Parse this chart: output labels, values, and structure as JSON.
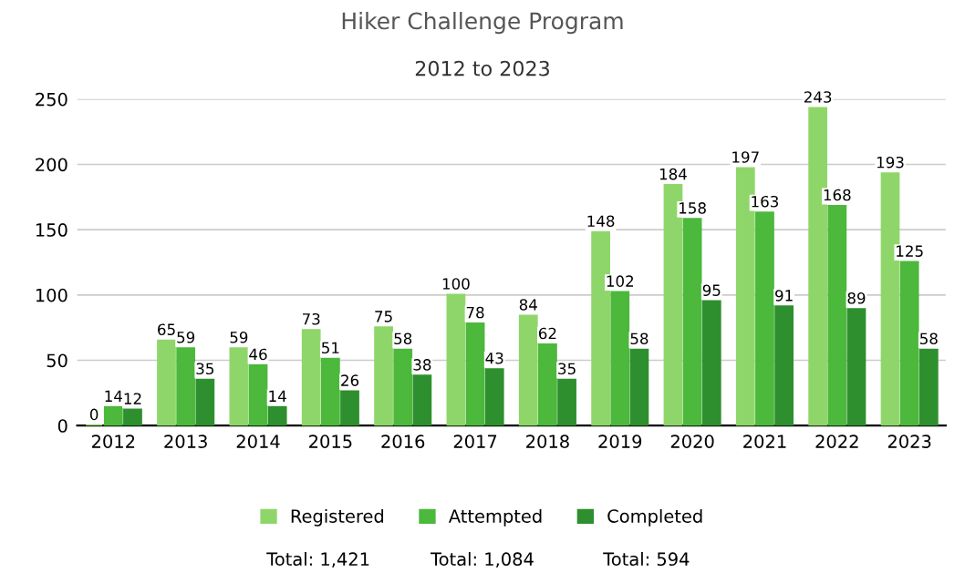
{
  "chart_data": {
    "type": "bar",
    "title": "Hiker Challenge Program",
    "subtitle": "2012 to 2023",
    "categories": [
      "2012",
      "2013",
      "2014",
      "2015",
      "2016",
      "2017",
      "2018",
      "2019",
      "2020",
      "2021",
      "2022",
      "2023"
    ],
    "series": [
      {
        "name": "Registered",
        "color": "#8fd66a",
        "values": [
          0,
          65,
          59,
          73,
          75,
          100,
          84,
          148,
          184,
          197,
          243,
          193
        ]
      },
      {
        "name": "Attempted",
        "color": "#4cb83c",
        "values": [
          14,
          59,
          46,
          51,
          58,
          78,
          62,
          102,
          158,
          163,
          168,
          125
        ]
      },
      {
        "name": "Completed",
        "color": "#2e8f2e",
        "values": [
          12,
          35,
          14,
          26,
          38,
          43,
          35,
          58,
          95,
          91,
          89,
          58
        ]
      }
    ],
    "ylim": [
      0,
      250
    ],
    "yticks": [
      0,
      50,
      100,
      150,
      200,
      250
    ],
    "grid": "y",
    "legend": "bottom",
    "data_labels": true,
    "annotations": [
      "Total: 1,421",
      "Total: 1,084",
      "Total: 594"
    ]
  }
}
